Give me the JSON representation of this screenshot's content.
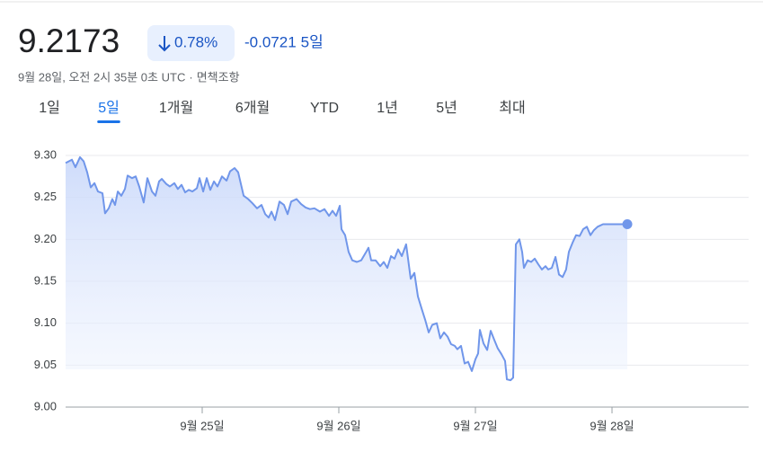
{
  "header": {
    "price": "9.2173",
    "change_percent": "0.78%",
    "change": "-0.0721",
    "period": "5일",
    "timestamp": "9월 28일, 오전 2시 35분 0초 UTC",
    "separator": "·",
    "disclaimer": "면책조항"
  },
  "tabs": [
    "1일",
    "5일",
    "1개월",
    "6개월",
    "YTD",
    "1년",
    "5년",
    "최대"
  ],
  "active_tab": 1,
  "chart_data": {
    "type": "line",
    "color": "#7096ea",
    "grid": true,
    "xlim": [
      24,
      29
    ],
    "ylim": [
      9.0,
      9.3
    ],
    "xticks": [
      {
        "value": 25,
        "label": "9월 25일"
      },
      {
        "value": 26,
        "label": "9월 26일"
      },
      {
        "value": 27,
        "label": "9월 27일"
      },
      {
        "value": 28,
        "label": "9월 28일"
      }
    ],
    "yticks": [
      {
        "value": 9.0,
        "label": "9.00"
      },
      9.05,
      {
        "value": 9.1,
        "label": "9.10"
      },
      9.15,
      {
        "value": 9.2,
        "label": "9.20"
      },
      9.25,
      {
        "value": 9.3,
        "label": "9.30"
      }
    ],
    "x": [
      24.0,
      24.046,
      24.072,
      24.105,
      24.132,
      24.158,
      24.184,
      24.211,
      24.237,
      24.27,
      24.289,
      24.316,
      24.342,
      24.362,
      24.382,
      24.408,
      24.434,
      24.454,
      24.487,
      24.513,
      24.539,
      24.572,
      24.599,
      24.632,
      24.658,
      24.684,
      24.704,
      24.737,
      24.763,
      24.796,
      24.822,
      24.849,
      24.875,
      24.901,
      24.928,
      24.961,
      24.98,
      25.007,
      25.033,
      25.059,
      25.086,
      25.112,
      25.145,
      25.178,
      25.204,
      25.237,
      25.263,
      25.303,
      25.336,
      25.368,
      25.401,
      25.434,
      25.461,
      25.487,
      25.507,
      25.533,
      25.566,
      25.599,
      25.625,
      25.651,
      25.691,
      25.724,
      25.757,
      25.789,
      25.822,
      25.862,
      25.895,
      25.928,
      25.954,
      25.98,
      26.007,
      26.02,
      26.046,
      26.072,
      26.099,
      26.132,
      26.164,
      26.197,
      26.217,
      26.237,
      26.27,
      26.303,
      26.329,
      26.355,
      26.382,
      26.408,
      26.434,
      26.461,
      26.493,
      26.526,
      26.553,
      26.579,
      26.605,
      26.632,
      26.658,
      26.684,
      26.717,
      26.743,
      26.77,
      26.796,
      26.822,
      26.849,
      26.868,
      26.895,
      26.921,
      26.947,
      26.974,
      27.0,
      27.02,
      27.033,
      27.059,
      27.086,
      27.112,
      27.138,
      27.164,
      27.191,
      27.217,
      27.23,
      27.257,
      27.276,
      27.296,
      27.322,
      27.342,
      27.355,
      27.382,
      27.408,
      27.434,
      27.461,
      27.487,
      27.513,
      27.533,
      27.559,
      27.586,
      27.612,
      27.638,
      27.664,
      27.684,
      27.711,
      27.737,
      27.763,
      27.789,
      27.816,
      27.842,
      27.868,
      27.895,
      27.934,
      28.112
    ],
    "values": [
      9.291,
      9.295,
      9.286,
      9.298,
      9.293,
      9.28,
      9.262,
      9.267,
      9.257,
      9.255,
      9.231,
      9.237,
      9.248,
      9.241,
      9.257,
      9.252,
      9.26,
      9.276,
      9.273,
      9.275,
      9.263,
      9.244,
      9.273,
      9.257,
      9.252,
      9.269,
      9.272,
      9.266,
      9.263,
      9.267,
      9.26,
      9.265,
      9.256,
      9.259,
      9.257,
      9.261,
      9.273,
      9.257,
      9.273,
      9.259,
      9.269,
      9.263,
      9.275,
      9.27,
      9.281,
      9.285,
      9.28,
      9.252,
      9.248,
      9.243,
      9.237,
      9.241,
      9.23,
      9.226,
      9.233,
      9.223,
      9.245,
      9.241,
      9.23,
      9.245,
      9.248,
      9.242,
      9.238,
      9.236,
      9.237,
      9.233,
      9.236,
      9.228,
      9.234,
      9.228,
      9.24,
      9.212,
      9.205,
      9.185,
      9.175,
      9.173,
      9.175,
      9.184,
      9.19,
      9.175,
      9.175,
      9.168,
      9.173,
      9.166,
      9.18,
      9.177,
      9.188,
      9.18,
      9.194,
      9.153,
      9.16,
      9.132,
      9.118,
      9.104,
      9.089,
      9.098,
      9.1,
      9.082,
      9.089,
      9.084,
      9.075,
      9.073,
      9.069,
      9.073,
      9.052,
      9.054,
      9.043,
      9.057,
      9.064,
      9.092,
      9.076,
      9.068,
      9.091,
      9.08,
      9.07,
      9.063,
      9.055,
      9.033,
      9.032,
      9.035,
      9.194,
      9.2,
      9.185,
      9.166,
      9.175,
      9.173,
      9.177,
      9.17,
      9.164,
      9.168,
      9.164,
      9.166,
      9.179,
      9.158,
      9.155,
      9.164,
      9.185,
      9.196,
      9.205,
      9.204,
      9.212,
      9.215,
      9.205,
      9.211,
      9.215,
      9.218,
      9.218
    ]
  }
}
